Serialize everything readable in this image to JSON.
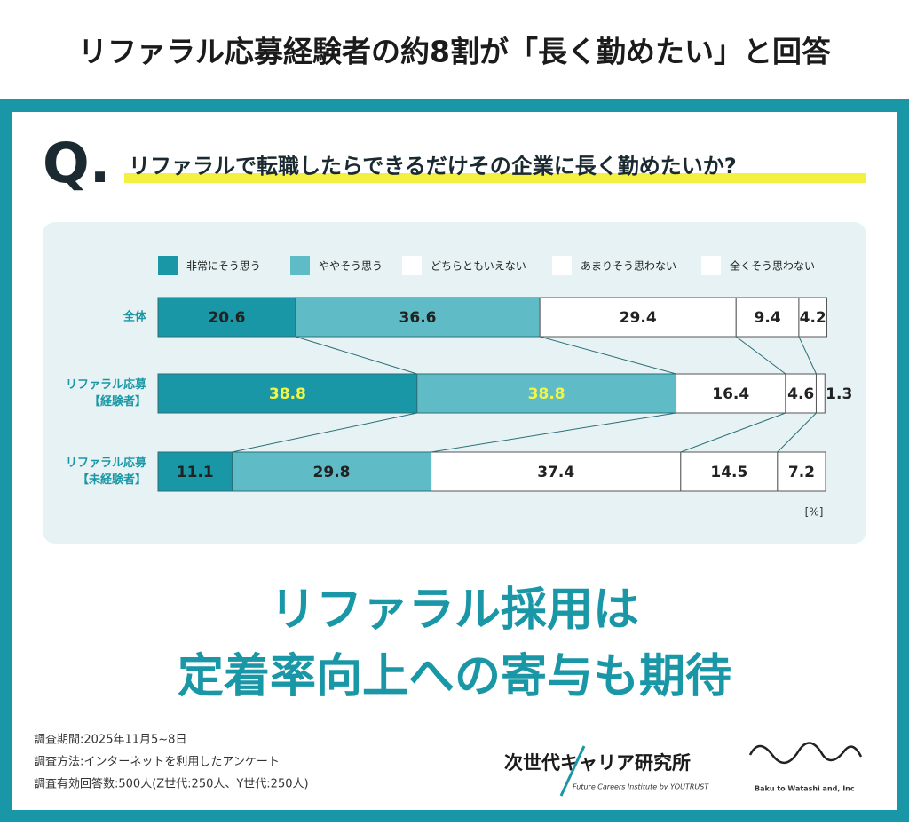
{
  "chart_data": {
    "type": "stacked-bar-horizontal",
    "title": "リファラル応募経験者の約8割が「長く勤めたい」と回答",
    "question_mark": "Q.",
    "subtitle": "リファラルで転職したらできるだけその企業に長く勤めたいか?",
    "categories": [
      [
        "全体"
      ],
      [
        "リファラル応募",
        "【経験者】"
      ],
      [
        "リファラル応募",
        "【未経験者】"
      ]
    ],
    "series": [
      {
        "name": "非常にそう思う",
        "color": "#1a97a6",
        "values": [
          20.6,
          38.8,
          11.1
        ],
        "label_colors": [
          "#222222",
          "#f3f545",
          "#222222"
        ]
      },
      {
        "name": "ややそう思う",
        "color": "#5fbcc6",
        "values": [
          36.6,
          38.8,
          29.8
        ],
        "label_colors": [
          "#222222",
          "#f3f545",
          "#222222"
        ]
      },
      {
        "name": "どちらともいえない",
        "color": "#ffffff",
        "values": [
          29.4,
          16.4,
          37.4
        ]
      },
      {
        "name": "あまりそう思わない",
        "color": "#ffffff",
        "values": [
          9.4,
          4.6,
          14.5
        ]
      },
      {
        "name": "全くそう思わない",
        "color": "#ffffff",
        "values": [
          4.2,
          1.3,
          7.2
        ]
      }
    ],
    "xlim": [
      0,
      100
    ],
    "unit": "[%]",
    "headline": [
      "リファラル採用は",
      "定着率向上への寄与も期待"
    ],
    "notes": [
      "調査期間:2025年11月5~8日",
      "調査方法:インターネットを利用したアンケート",
      "調査有効回答数:500人(Z世代:250人、Y世代:250人)"
    ],
    "logos": {
      "institute": "次世代キャリア研究所",
      "institute_sub": "Future Careers Institute by YOUTRUST",
      "company": "Baku to Watashi and, Inc"
    }
  }
}
